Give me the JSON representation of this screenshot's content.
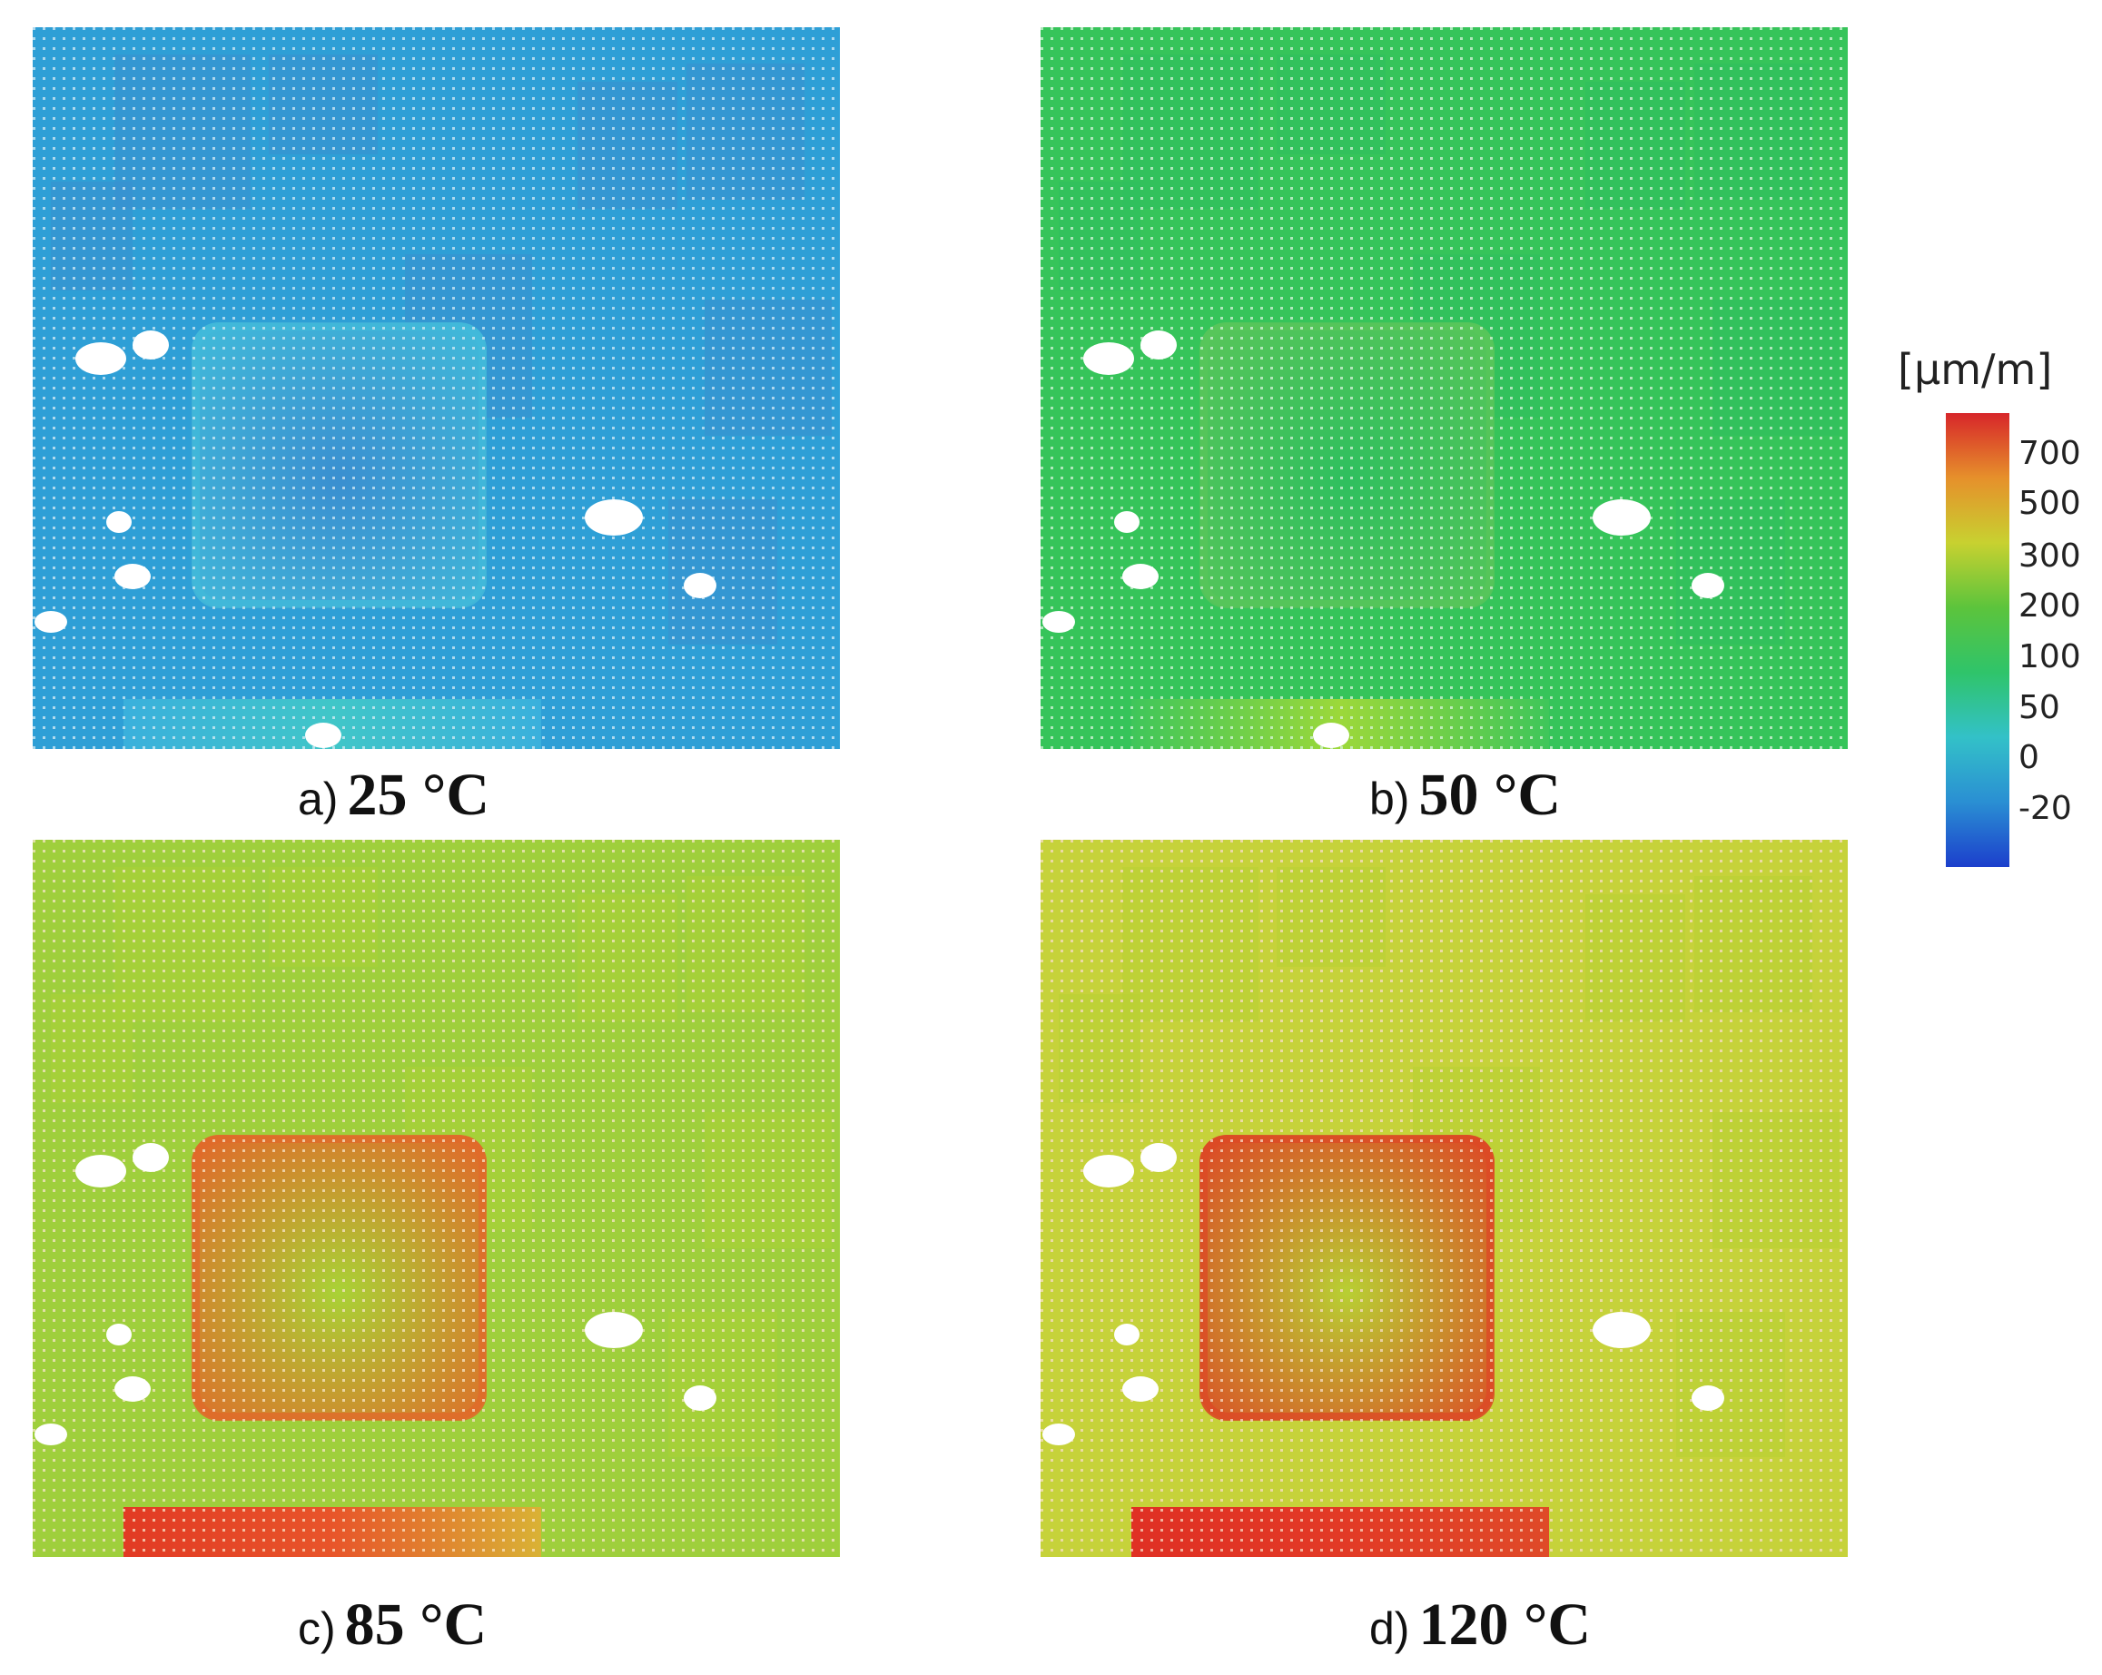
{
  "panels": [
    {
      "id": "a",
      "letter": "a)",
      "temperature": "25 °C",
      "base_color": "#2e9fd6",
      "pad_color": "#3a8fd0",
      "halo_color": "#41b9d9",
      "bottom_strip": [
        "#3ab0dc",
        "#40c6c8",
        "#3ab0dc"
      ],
      "grid_color": "#d8ecf5"
    },
    {
      "id": "b",
      "letter": "b)",
      "temperature": "50 °C",
      "base_color": "#36c45a",
      "pad_color": "#2fbf5e",
      "halo_color": "#57c55a",
      "bottom_strip": [
        "#3fc65a",
        "#9cd83a",
        "#3fc65a"
      ],
      "grid_color": "#d8f2dc"
    },
    {
      "id": "c",
      "letter": "c)",
      "temperature": "85 °C",
      "base_color": "#9fcf3c",
      "pad_color": "#a9d236",
      "halo_color": "#e06a2a",
      "bottom_strip": [
        "#e23a24",
        "#e8552a",
        "#d9b235"
      ],
      "grid_color": "#f6e4c8"
    },
    {
      "id": "d",
      "letter": "d)",
      "temperature": "120 °C",
      "base_color": "#c6d23a",
      "pad_color": "#b8cf33",
      "halo_color": "#dc4a26",
      "bottom_strip": [
        "#e03024",
        "#e23a26",
        "#df4a28"
      ],
      "grid_color": "#f6dcc6"
    }
  ],
  "colorbar": {
    "unit": "[µm/m]",
    "ticks": [
      "700",
      "500",
      "300",
      "200",
      "100",
      "50",
      "0",
      "-20"
    ],
    "gradient": [
      "#d7262a",
      "#e6902b",
      "#c8d130",
      "#5cc43c",
      "#2fc46a",
      "#33c1c8",
      "#2a8fd3",
      "#1c3fcc"
    ]
  }
}
